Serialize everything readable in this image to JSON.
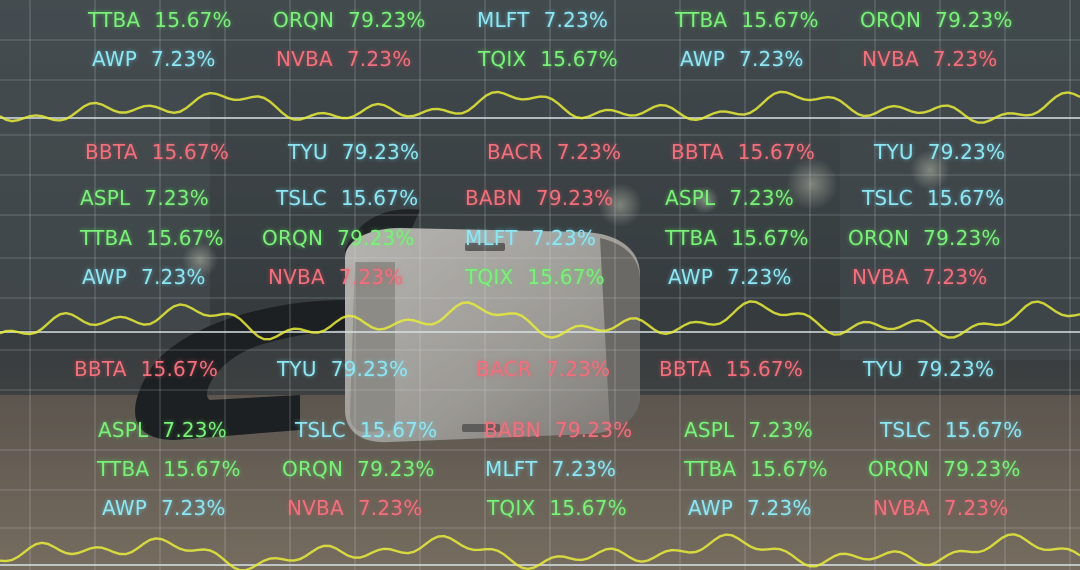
{
  "overlay": {
    "colors": {
      "green": "#7bf07a",
      "cyan": "#8ee6f2",
      "red": "#f0707c",
      "wave": "#e8ec3a",
      "grid": "#d8e2e6"
    },
    "subject": "vr-headset-on-table",
    "tickers": [
      {
        "sym": "TTBA",
        "val": "15.67%",
        "c": "green"
      },
      {
        "sym": "ORQN",
        "val": "79.23%",
        "c": "green"
      },
      {
        "sym": "MLFT",
        "val": "7.23%",
        "c": "cyan"
      },
      {
        "sym": "TTBA",
        "val": "15.67%",
        "c": "green"
      },
      {
        "sym": "ORQN",
        "val": "79.23%",
        "c": "green"
      },
      {
        "sym": "AWP",
        "val": "7.23%",
        "c": "cyan"
      },
      {
        "sym": "NVBA",
        "val": "7.23%",
        "c": "red"
      },
      {
        "sym": "TQIX",
        "val": "15.67%",
        "c": "green"
      },
      {
        "sym": "AWP",
        "val": "7.23%",
        "c": "cyan"
      },
      {
        "sym": "NVBA",
        "val": "7.23%",
        "c": "red"
      },
      {
        "sym": "BBTA",
        "val": "15.67%",
        "c": "red"
      },
      {
        "sym": "TYU",
        "val": "79.23%",
        "c": "cyan"
      },
      {
        "sym": "BACR",
        "val": "7.23%",
        "c": "red"
      },
      {
        "sym": "BBTA",
        "val": "15.67%",
        "c": "red"
      },
      {
        "sym": "TYU",
        "val": "79.23%",
        "c": "cyan"
      },
      {
        "sym": "ASPL",
        "val": "7.23%",
        "c": "green"
      },
      {
        "sym": "TSLC",
        "val": "15.67%",
        "c": "cyan"
      },
      {
        "sym": "BABN",
        "val": "79.23%",
        "c": "red"
      },
      {
        "sym": "ASPL",
        "val": "7.23%",
        "c": "green"
      },
      {
        "sym": "TSLC",
        "val": "15.67%",
        "c": "cyan"
      },
      {
        "sym": "TTBA",
        "val": "15.67%",
        "c": "green"
      },
      {
        "sym": "ORQN",
        "val": "79.23%",
        "c": "green"
      },
      {
        "sym": "MLFT",
        "val": "7.23%",
        "c": "cyan"
      },
      {
        "sym": "TTBA",
        "val": "15.67%",
        "c": "green"
      },
      {
        "sym": "ORQN",
        "val": "79.23%",
        "c": "green"
      },
      {
        "sym": "AWP",
        "val": "7.23%",
        "c": "cyan"
      },
      {
        "sym": "NVBA",
        "val": "7.23%",
        "c": "red"
      },
      {
        "sym": "TQIX",
        "val": "15.67%",
        "c": "green"
      },
      {
        "sym": "AWP",
        "val": "7.23%",
        "c": "cyan"
      },
      {
        "sym": "NVBA",
        "val": "7.23%",
        "c": "red"
      },
      {
        "sym": "BBTA",
        "val": "15.67%",
        "c": "red"
      },
      {
        "sym": "TYU",
        "val": "79.23%",
        "c": "cyan"
      },
      {
        "sym": "BACR",
        "val": "7.23%",
        "c": "red"
      },
      {
        "sym": "BBTA",
        "val": "15.67%",
        "c": "red"
      },
      {
        "sym": "TYU",
        "val": "79.23%",
        "c": "cyan"
      },
      {
        "sym": "ASPL",
        "val": "7.23%",
        "c": "green"
      },
      {
        "sym": "TSLC",
        "val": "15.67%",
        "c": "cyan"
      },
      {
        "sym": "BABN",
        "val": "79.23%",
        "c": "red"
      },
      {
        "sym": "ASPL",
        "val": "7.23%",
        "c": "green"
      },
      {
        "sym": "TSLC",
        "val": "15.67%",
        "c": "cyan"
      },
      {
        "sym": "TTBA",
        "val": "15.67%",
        "c": "green"
      },
      {
        "sym": "ORQN",
        "val": "79.23%",
        "c": "green"
      },
      {
        "sym": "MLFT",
        "val": "7.23%",
        "c": "cyan"
      },
      {
        "sym": "TTBA",
        "val": "15.67%",
        "c": "green"
      },
      {
        "sym": "ORQN",
        "val": "79.23%",
        "c": "green"
      },
      {
        "sym": "AWP",
        "val": "7.23%",
        "c": "cyan"
      },
      {
        "sym": "NVBA",
        "val": "7.23%",
        "c": "red"
      },
      {
        "sym": "TQIX",
        "val": "15.67%",
        "c": "green"
      },
      {
        "sym": "AWP",
        "val": "7.23%",
        "c": "cyan"
      },
      {
        "sym": "NVBA",
        "val": "7.23%",
        "c": "red"
      }
    ]
  }
}
